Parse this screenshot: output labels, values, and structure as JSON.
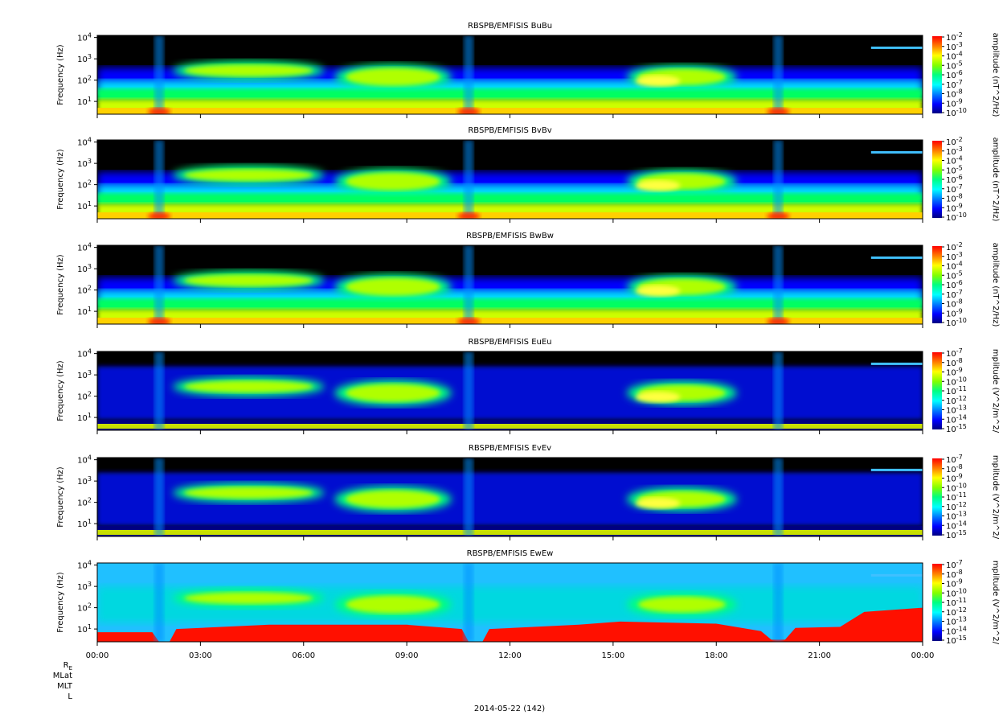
{
  "figure": {
    "date_label": "2014-05-22 (142)",
    "ephemeris_labels": [
      "R_E",
      "MLat",
      "MLT",
      "L"
    ],
    "x_tick_labels": [
      "00:00",
      "03:00",
      "06:00",
      "09:00",
      "12:00",
      "15:00",
      "18:00",
      "21:00",
      "00:00"
    ]
  },
  "colors": {
    "colormap": [
      "#000080",
      "#0000ff",
      "#0080ff",
      "#00ffff",
      "#00ff80",
      "#80ff00",
      "#ffff00",
      "#ff8000",
      "#ff0000"
    ],
    "background_empty": "#000000"
  },
  "chart_data": [
    {
      "type": "heatmap",
      "title": "RBSPB/EMFISIS  BuBu",
      "xlabel": "",
      "ylabel": "Frequency (Hz)",
      "x_range": [
        "00:00",
        "24:00"
      ],
      "y_scale": "log",
      "y_tick_labels": [
        "10^1",
        "10^2",
        "10^3",
        "10^4"
      ],
      "colorbar_label": "amplitude (nT^2/Hz)",
      "colorbar_range_exp": [
        -10,
        -2
      ],
      "colorbar_tick_exps": [
        -2,
        -3,
        -4,
        -5,
        -6,
        -7,
        -8,
        -9,
        -10
      ],
      "profile": "B"
    },
    {
      "type": "heatmap",
      "title": "RBSPB/EMFISIS  BvBv",
      "xlabel": "",
      "ylabel": "Frequency (Hz)",
      "x_range": [
        "00:00",
        "24:00"
      ],
      "y_scale": "log",
      "y_tick_labels": [
        "10^1",
        "10^2",
        "10^3",
        "10^4"
      ],
      "colorbar_label": "amplitude (nT^2/Hz)",
      "colorbar_range_exp": [
        -10,
        -2
      ],
      "colorbar_tick_exps": [
        -2,
        -3,
        -4,
        -5,
        -6,
        -7,
        -8,
        -9,
        -10
      ],
      "profile": "B"
    },
    {
      "type": "heatmap",
      "title": "RBSPB/EMFISIS  BwBw",
      "xlabel": "",
      "ylabel": "Frequency (Hz)",
      "x_range": [
        "00:00",
        "24:00"
      ],
      "y_scale": "log",
      "y_tick_labels": [
        "10^1",
        "10^2",
        "10^3",
        "10^4"
      ],
      "colorbar_label": "amplitude (nT^2/Hz)",
      "colorbar_range_exp": [
        -10,
        -2
      ],
      "colorbar_tick_exps": [
        -2,
        -3,
        -4,
        -5,
        -6,
        -7,
        -8,
        -9,
        -10
      ],
      "profile": "B"
    },
    {
      "type": "heatmap",
      "title": "RBSPB/EMFISIS  EuEu",
      "xlabel": "",
      "ylabel": "Frequency (Hz)",
      "x_range": [
        "00:00",
        "24:00"
      ],
      "y_scale": "log",
      "y_tick_labels": [
        "10^1",
        "10^2",
        "10^3",
        "10^4"
      ],
      "colorbar_label": "mplitude (V^2/m^2/",
      "colorbar_range_exp": [
        -15,
        -7
      ],
      "colorbar_tick_exps": [
        -7,
        -8,
        -9,
        -10,
        -11,
        -12,
        -13,
        -14,
        -15
      ],
      "profile": "E"
    },
    {
      "type": "heatmap",
      "title": "RBSPB/EMFISIS  EvEv",
      "xlabel": "",
      "ylabel": "Frequency (Hz)",
      "x_range": [
        "00:00",
        "24:00"
      ],
      "y_scale": "log",
      "y_tick_labels": [
        "10^1",
        "10^2",
        "10^3",
        "10^4"
      ],
      "colorbar_label": "mplitude (V^2/m^2/",
      "colorbar_range_exp": [
        -15,
        -7
      ],
      "colorbar_tick_exps": [
        -7,
        -8,
        -9,
        -10,
        -11,
        -12,
        -13,
        -14,
        -15
      ],
      "profile": "E"
    },
    {
      "type": "heatmap",
      "title": "RBSPB/EMFISIS  EwEw",
      "xlabel": "",
      "ylabel": "Frequency (Hz)",
      "x_range": [
        "00:00",
        "24:00"
      ],
      "y_scale": "log",
      "y_tick_labels": [
        "10^1",
        "10^2",
        "10^3",
        "10^4"
      ],
      "colorbar_label": "mplitude (V^2/m^2/",
      "colorbar_range_exp": [
        -15,
        -7
      ],
      "colorbar_tick_exps": [
        -7,
        -8,
        -9,
        -10,
        -11,
        -12,
        -13,
        -14,
        -15
      ],
      "profile": "Ew"
    }
  ]
}
